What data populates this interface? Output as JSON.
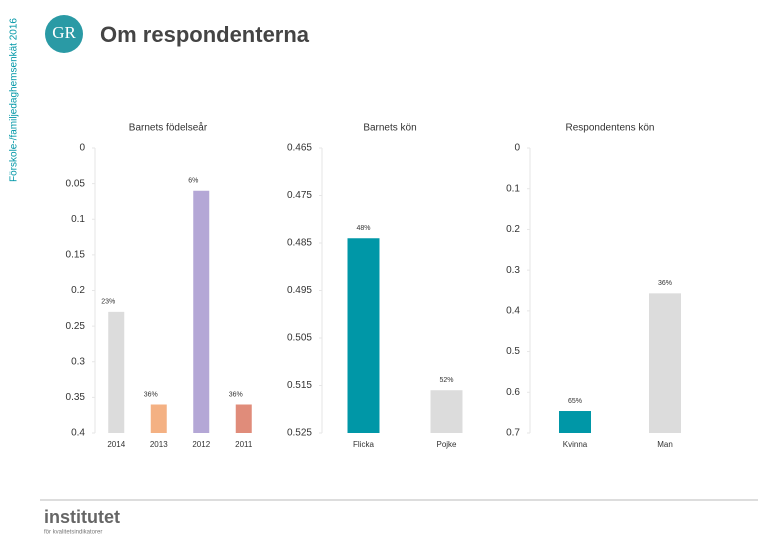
{
  "header": {
    "side_label": "Förskole-/familjedaghemsenkät 2016",
    "logo": "GR",
    "title": "Om respondenterna"
  },
  "chart_data": [
    {
      "type": "bar",
      "title": "Barnets födelseår",
      "categories": [
        "2014",
        "2013",
        "2012",
        "2011"
      ],
      "values": [
        0.23,
        0.36,
        0.06,
        0.36
      ],
      "value_labels": [
        "23%",
        "36%",
        "6%",
        "36%"
      ],
      "colors": [
        "#dcdcdc",
        "#f4b183",
        "#b4a7d6",
        "#e08c7a"
      ],
      "ylim": [
        0,
        0.4
      ],
      "yticks": [
        0,
        0.05,
        0.1,
        0.15,
        0.2,
        0.25,
        0.3,
        0.35,
        0.4
      ],
      "y_inverted": true
    },
    {
      "type": "bar",
      "title": "Barnets kön",
      "categories": [
        "Flicka",
        "Pojke"
      ],
      "values": [
        0.484,
        0.516
      ],
      "value_labels": [
        "48%",
        "52%"
      ],
      "colors": [
        "#0097a7",
        "#dcdcdc"
      ],
      "ylim": [
        0.465,
        0.525
      ],
      "yticks": [
        0.465,
        0.475,
        0.485,
        0.495,
        0.505,
        0.515,
        0.525
      ],
      "y_inverted": true
    },
    {
      "type": "bar",
      "title": "Respondentens kön",
      "categories": [
        "Kvinna",
        "Man"
      ],
      "values": [
        0.646,
        0.357
      ],
      "value_labels": [
        "65%",
        "36%"
      ],
      "colors": [
        "#0097a7",
        "#dcdcdc"
      ],
      "ylim": [
        0,
        0.7
      ],
      "yticks": [
        0,
        0.1,
        0.2,
        0.3,
        0.4,
        0.5,
        0.6,
        0.7
      ],
      "y_inverted": true
    }
  ],
  "footer": {
    "brand": "institutet",
    "tagline": "för kvalitetsindikatorer"
  }
}
